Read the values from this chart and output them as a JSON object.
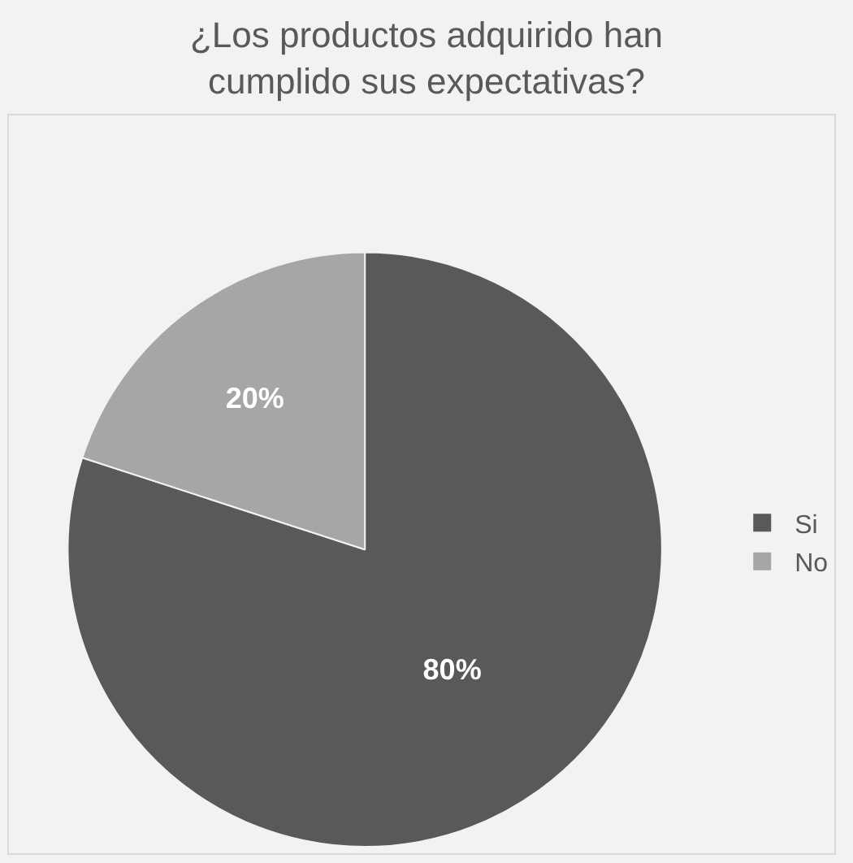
{
  "chart_data": {
    "type": "pie",
    "title": "¿Los productos adquirido han cumplido sus expectativas?",
    "categories": [
      "Si",
      "No"
    ],
    "values": [
      80,
      20
    ],
    "colors": [
      "#595959",
      "#a6a6a6"
    ],
    "value_labels": [
      "80%",
      "20%"
    ],
    "legend": "right"
  }
}
